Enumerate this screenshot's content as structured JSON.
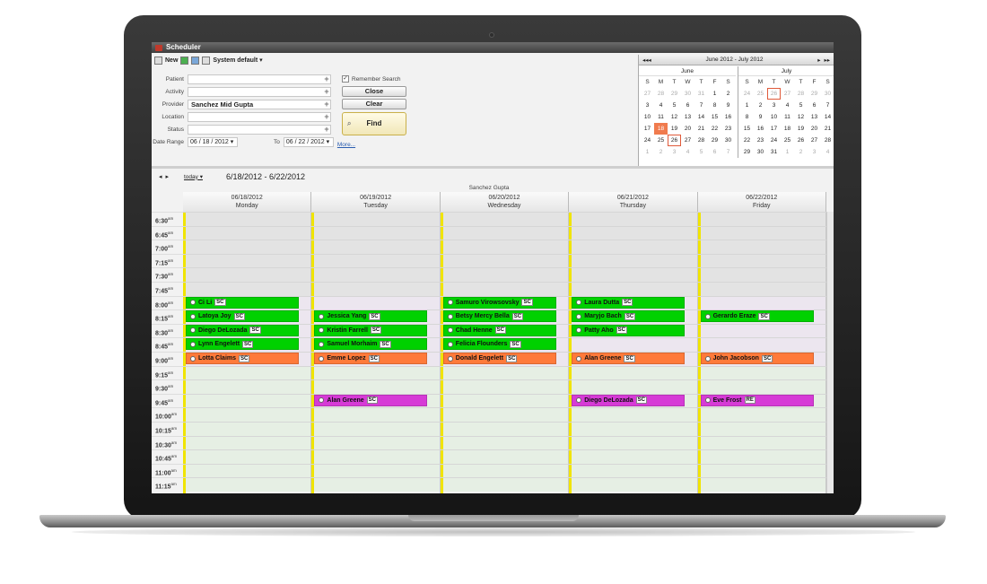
{
  "window": {
    "title": "Scheduler"
  },
  "toolbar": {
    "new_label": "New",
    "view_label": "System default"
  },
  "form": {
    "patient_label": "Patient",
    "activity_label": "Activity",
    "provider_label": "Provider",
    "provider_value": "Sanchez Mid Gupta",
    "location_label": "Location",
    "status_label": "Status",
    "date_range_label": "Date Range",
    "date_from": "06 / 18 / 2012",
    "to_label": "To",
    "date_to": "06 / 22 / 2012",
    "more_label": "More...",
    "remember_label": "Remember Search",
    "close_label": "Close",
    "clear_label": "Clear",
    "find_label": "Find"
  },
  "mini_calendar": {
    "range_label": "June 2012 - July 2012",
    "nav_prev_prev": "◂◂",
    "nav_prev": "◂",
    "nav_next": "▸",
    "nav_next_next": "▸▸",
    "weekdays": [
      "S",
      "M",
      "T",
      "W",
      "T",
      "F",
      "S"
    ],
    "june": {
      "title": "June",
      "weeks": [
        [
          "27",
          "28",
          "29",
          "30",
          "31",
          "1",
          "2"
        ],
        [
          "3",
          "4",
          "5",
          "6",
          "7",
          "8",
          "9"
        ],
        [
          "10",
          "11",
          "12",
          "13",
          "14",
          "15",
          "16"
        ],
        [
          "17",
          "18",
          "19",
          "20",
          "21",
          "22",
          "23"
        ],
        [
          "24",
          "25",
          "26",
          "27",
          "28",
          "29",
          "30"
        ],
        [
          "1",
          "2",
          "3",
          "4",
          "5",
          "6",
          "7"
        ]
      ]
    },
    "july": {
      "title": "July",
      "weeks": [
        [
          "24",
          "25",
          "26",
          "27",
          "28",
          "29",
          "30"
        ],
        [
          "1",
          "2",
          "3",
          "4",
          "5",
          "6",
          "7"
        ],
        [
          "8",
          "9",
          "10",
          "11",
          "12",
          "13",
          "14"
        ],
        [
          "15",
          "16",
          "17",
          "18",
          "19",
          "20",
          "21"
        ],
        [
          "22",
          "23",
          "24",
          "25",
          "26",
          "27",
          "28"
        ],
        [
          "29",
          "30",
          "31",
          "1",
          "2",
          "3",
          "4"
        ]
      ]
    }
  },
  "schedule": {
    "today_label": "today",
    "range_label": "6/18/2012 - 6/22/2012",
    "provider": "Sanchez Gupta",
    "days": [
      {
        "date": "06/18/2012",
        "name": "Monday"
      },
      {
        "date": "06/19/2012",
        "name": "Tuesday"
      },
      {
        "date": "06/20/2012",
        "name": "Wednesday"
      },
      {
        "date": "06/21/2012",
        "name": "Thursday"
      },
      {
        "date": "06/22/2012",
        "name": "Friday"
      }
    ],
    "times": [
      {
        "h": "6:30",
        "p": "am"
      },
      {
        "h": "6:45",
        "p": "am"
      },
      {
        "h": "7:00",
        "p": "am"
      },
      {
        "h": "7:15",
        "p": "am"
      },
      {
        "h": "7:30",
        "p": "am"
      },
      {
        "h": "7:45",
        "p": "am"
      },
      {
        "h": "8:00",
        "p": "am"
      },
      {
        "h": "8:15",
        "p": "am"
      },
      {
        "h": "8:30",
        "p": "am"
      },
      {
        "h": "8:45",
        "p": "am"
      },
      {
        "h": "9:00",
        "p": "am"
      },
      {
        "h": "9:15",
        "p": "am"
      },
      {
        "h": "9:30",
        "p": "am"
      },
      {
        "h": "9:45",
        "p": "am"
      },
      {
        "h": "10:00",
        "p": "am"
      },
      {
        "h": "10:15",
        "p": "am"
      },
      {
        "h": "10:30",
        "p": "am"
      },
      {
        "h": "10:45",
        "p": "am"
      },
      {
        "h": "11:00",
        "p": "am"
      },
      {
        "h": "11:15",
        "p": "am"
      }
    ],
    "colors": {
      "green": "#00d100",
      "orange": "#ff7a3a",
      "magenta": "#d63bd6",
      "unavailable": "#e3e3e3",
      "lavender": "#ece6ef",
      "open": "#e6efe4"
    },
    "appointments": [
      {
        "day": 0,
        "slot": 6,
        "name": "Ci Li",
        "code": "SC",
        "color": "green"
      },
      {
        "day": 0,
        "slot": 7,
        "name": "Latoya Joy",
        "code": "SC",
        "color": "green"
      },
      {
        "day": 0,
        "slot": 8,
        "name": "Diego DeLozada",
        "code": "SC",
        "color": "green"
      },
      {
        "day": 0,
        "slot": 9,
        "name": "Lynn Engelett",
        "code": "SC",
        "color": "green"
      },
      {
        "day": 0,
        "slot": 10,
        "name": "Lotta Claims",
        "code": "SC",
        "color": "orange"
      },
      {
        "day": 1,
        "slot": 7,
        "name": "Jessica Yang",
        "code": "SC",
        "color": "green"
      },
      {
        "day": 1,
        "slot": 8,
        "name": "Kristin Farrell",
        "code": "SC",
        "color": "green"
      },
      {
        "day": 1,
        "slot": 9,
        "name": "Samuel Morhaim",
        "code": "SC",
        "color": "green"
      },
      {
        "day": 1,
        "slot": 10,
        "name": "Emme Lopez",
        "code": "SC",
        "color": "orange"
      },
      {
        "day": 1,
        "slot": 13,
        "name": "Alan Greene",
        "code": "SC",
        "color": "magenta"
      },
      {
        "day": 2,
        "slot": 6,
        "name": "Samuro Virowsovsky",
        "code": "SC",
        "color": "green"
      },
      {
        "day": 2,
        "slot": 7,
        "name": "Betsy Mercy Bella",
        "code": "SC",
        "color": "green"
      },
      {
        "day": 2,
        "slot": 8,
        "name": "Chad Henne",
        "code": "SC",
        "color": "green"
      },
      {
        "day": 2,
        "slot": 9,
        "name": "Felicia Flounders",
        "code": "SC",
        "color": "green"
      },
      {
        "day": 2,
        "slot": 10,
        "name": "Donald Engelett",
        "code": "SC",
        "color": "orange"
      },
      {
        "day": 3,
        "slot": 6,
        "name": "Laura Dutta",
        "code": "SC",
        "color": "green"
      },
      {
        "day": 3,
        "slot": 7,
        "name": "Maryjo Bach",
        "code": "SC",
        "color": "green"
      },
      {
        "day": 3,
        "slot": 8,
        "name": "Patty Aho",
        "code": "SC",
        "color": "green"
      },
      {
        "day": 3,
        "slot": 10,
        "name": "Alan Greene",
        "code": "SC",
        "color": "orange"
      },
      {
        "day": 3,
        "slot": 13,
        "name": "Diego DeLozada",
        "code": "SC",
        "color": "magenta"
      },
      {
        "day": 4,
        "slot": 7,
        "name": "Gerardo Eraze",
        "code": "SC",
        "color": "green"
      },
      {
        "day": 4,
        "slot": 10,
        "name": "John Jacobson",
        "code": "SC",
        "color": "orange"
      },
      {
        "day": 4,
        "slot": 13,
        "name": "Eve Frost",
        "code": "RE",
        "color": "magenta"
      }
    ]
  }
}
